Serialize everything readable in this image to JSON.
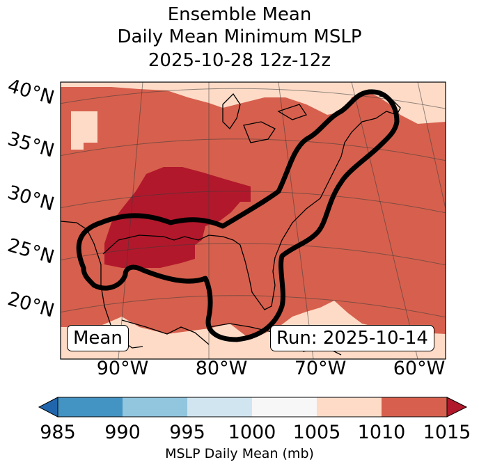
{
  "title": {
    "line1": "Ensemble Mean",
    "line2": "Daily Mean Minimum MSLP",
    "line3": "2025-10-28 12z-12z"
  },
  "map": {
    "lat_labels": [
      "40°N",
      "35°N",
      "30°N",
      "25°N",
      "20°N"
    ],
    "lon_labels": [
      "90°W",
      "80°W",
      "70°W",
      "60°W"
    ],
    "mean_box": "Mean",
    "run_box": "Run: 2025-10-14",
    "colors": {
      "r1005_1010": "#fddbc7",
      "r1010_1015": "#d6604d",
      "r1015_plus": "#b2182b",
      "contour": "#000000",
      "coast": "#000000"
    }
  },
  "colorbar": {
    "label": "MSLP Daily Mean (mb)",
    "ticks": [
      "985",
      "990",
      "995",
      "1000",
      "1005",
      "1010",
      "1015"
    ],
    "colors": [
      "#4393c3",
      "#92c5de",
      "#d1e5f0",
      "#f7f7f7",
      "#fddbc7",
      "#d6604d"
    ],
    "under_color": "#2166ac",
    "over_color": "#b2182b"
  }
}
